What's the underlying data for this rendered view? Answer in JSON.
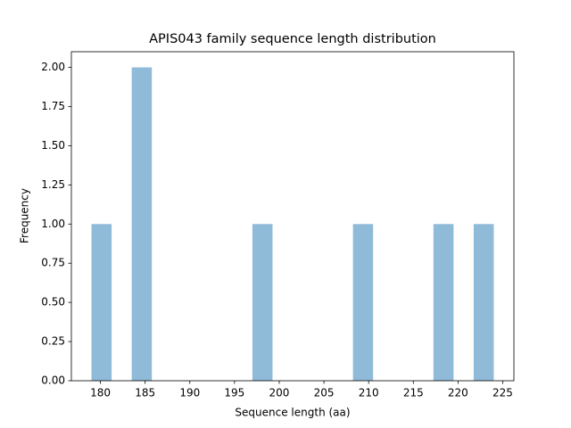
{
  "chart_data": {
    "type": "histogram",
    "title": "APIS043 family sequence length distribution",
    "x_label": "Sequence length (aa)",
    "y_label": "Frequency",
    "bins": [
      179,
      181.25,
      183.5,
      185.75,
      188,
      190.25,
      192.5,
      194.75,
      197,
      199.25,
      201.5,
      203.75,
      206,
      208.25,
      210.5,
      212.75,
      215,
      217.25,
      219.5,
      221.75,
      224
    ],
    "values": [
      1,
      0,
      2,
      0,
      0,
      0,
      0,
      0,
      1,
      0,
      0,
      0,
      0,
      1,
      0,
      0,
      0,
      1,
      0,
      1
    ],
    "color": "#8fbbd9",
    "xlim": [
      176.75,
      226.25
    ],
    "xticks": [
      180,
      185,
      190,
      195,
      200,
      205,
      210,
      215,
      220,
      225
    ],
    "ylim": [
      0,
      2.1
    ],
    "yticks": [
      {
        "value": 0,
        "label": "0.00"
      },
      {
        "value": 0.25,
        "label": "0.25"
      },
      {
        "value": 0.5,
        "label": "0.50"
      },
      {
        "value": 0.75,
        "label": "0.75"
      },
      {
        "value": 1,
        "label": "1.00"
      },
      {
        "value": 1.25,
        "label": "1.25"
      },
      {
        "value": 1.5,
        "label": "1.50"
      },
      {
        "value": 1.75,
        "label": "1.75"
      },
      {
        "value": 2,
        "label": "2.00"
      }
    ],
    "grid": false
  }
}
